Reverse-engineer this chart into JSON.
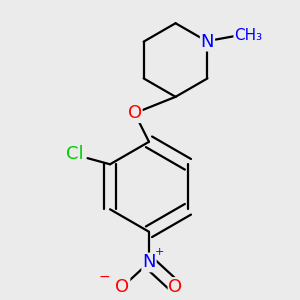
{
  "background_color": "#ebebeb",
  "bond_color": "#000000",
  "bond_width": 1.6,
  "atom_colors": {
    "N": "#0000ff",
    "O": "#ff0000",
    "Cl": "#00cc00",
    "C": "#000000"
  },
  "font_size_atoms": 13,
  "font_size_small": 11,
  "figsize": [
    3.0,
    3.0
  ],
  "dpi": 100
}
